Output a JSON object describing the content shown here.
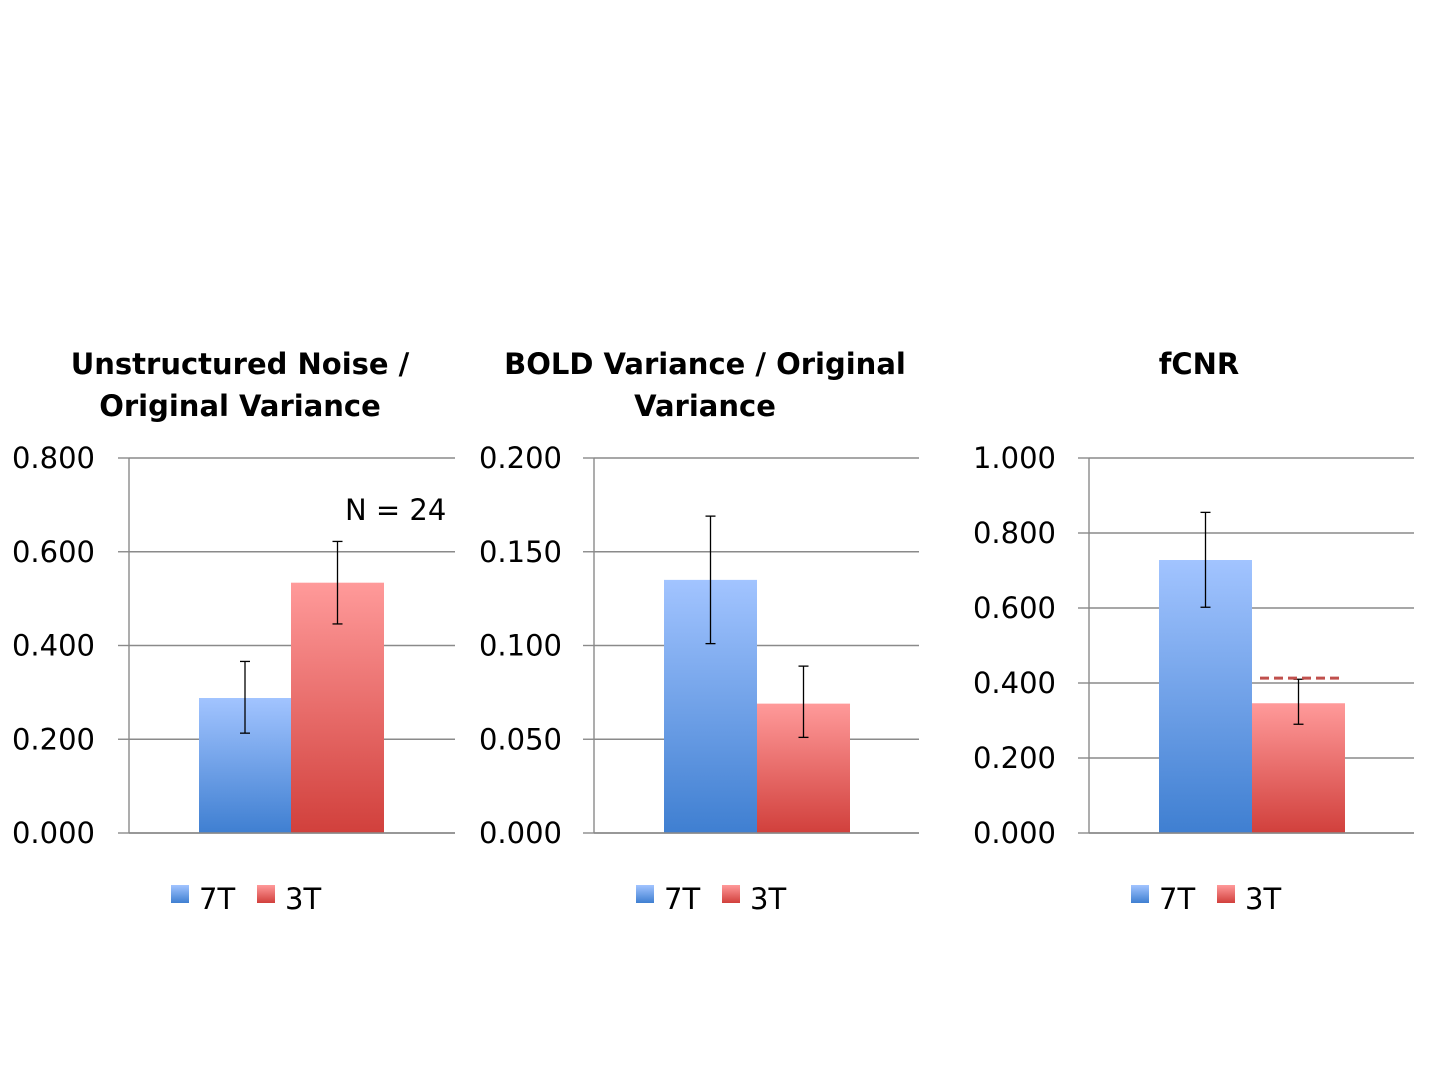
{
  "colors": {
    "series_7T_top": "#a2c4ff",
    "series_7T_bottom": "#3f7fd1",
    "series_3T_top": "#ff9a9a",
    "series_3T_bottom": "#d1403c",
    "grid": "#8a8a8a",
    "axis": "#8a8a8a",
    "error_bar": "#000000",
    "reference_line": "#c0504d"
  },
  "chart_data": [
    {
      "type": "bar",
      "title": "Unstructured Noise / Original Variance",
      "title_lines": [
        "Unstructured Noise /",
        "Original Variance"
      ],
      "categories": [
        ""
      ],
      "series": [
        {
          "name": "7T",
          "values": [
            0.288
          ],
          "error_low": [
            0.213
          ],
          "error_high": [
            0.366
          ]
        },
        {
          "name": "3T",
          "values": [
            0.534
          ],
          "error_low": [
            0.446
          ],
          "error_high": [
            0.622
          ]
        }
      ],
      "ylim": [
        0,
        0.8
      ],
      "yticks": [
        "0.000",
        "0.200",
        "0.400",
        "0.600",
        "0.800"
      ],
      "annotations": [
        "N = 24"
      ],
      "grid": true,
      "legend": "bottom"
    },
    {
      "type": "bar",
      "title": "BOLD Variance / Original Variance",
      "title_lines": [
        "BOLD Variance / Original",
        "Variance"
      ],
      "categories": [
        ""
      ],
      "series": [
        {
          "name": "7T",
          "values": [
            0.135
          ],
          "error_low": [
            0.101
          ],
          "error_high": [
            0.169
          ]
        },
        {
          "name": "3T",
          "values": [
            0.069
          ],
          "error_low": [
            0.051
          ],
          "error_high": [
            0.089
          ]
        }
      ],
      "ylim": [
        0,
        0.2
      ],
      "yticks": [
        "0.000",
        "0.050",
        "0.100",
        "0.150",
        "0.200"
      ],
      "annotations": [],
      "grid": true,
      "legend": "bottom"
    },
    {
      "type": "bar",
      "title": "fCNR",
      "title_lines": [
        "fCNR"
      ],
      "categories": [
        ""
      ],
      "series": [
        {
          "name": "7T",
          "values": [
            0.728
          ],
          "error_low": [
            0.602
          ],
          "error_high": [
            0.855
          ]
        },
        {
          "name": "3T",
          "values": [
            0.346
          ],
          "error_low": [
            0.29
          ],
          "error_high": [
            0.41
          ]
        }
      ],
      "reference_line": 0.413,
      "ylim": [
        0,
        1.0
      ],
      "yticks": [
        "0.000",
        "0.200",
        "0.400",
        "0.600",
        "0.800",
        "1.000"
      ],
      "annotations": [],
      "grid": true,
      "legend": "bottom"
    }
  ]
}
